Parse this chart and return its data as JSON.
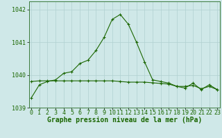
{
  "title": "Graphe pression niveau de la mer (hPa)",
  "background_color": "#cfe8e8",
  "grid_color": "#b0d0d0",
  "line_color": "#1a6600",
  "x": [
    0,
    1,
    2,
    3,
    4,
    5,
    6,
    7,
    8,
    9,
    10,
    11,
    12,
    13,
    14,
    15,
    16,
    17,
    18,
    19,
    20,
    21,
    22,
    23
  ],
  "y_main": [
    1039.3,
    1039.7,
    1039.8,
    1039.85,
    1040.05,
    1040.1,
    1040.35,
    1040.45,
    1040.75,
    1041.15,
    1041.7,
    1041.85,
    1041.55,
    1041.0,
    1040.4,
    1039.85,
    1039.8,
    1039.75,
    1039.65,
    1039.6,
    1039.75,
    1039.55,
    1039.7,
    1039.55
  ],
  "y_flat": [
    1039.8,
    1039.82,
    1039.82,
    1039.82,
    1039.82,
    1039.82,
    1039.82,
    1039.82,
    1039.82,
    1039.82,
    1039.82,
    1039.8,
    1039.78,
    1039.78,
    1039.78,
    1039.76,
    1039.74,
    1039.72,
    1039.65,
    1039.65,
    1039.68,
    1039.58,
    1039.65,
    1039.55
  ],
  "ylim": [
    1039.0,
    1042.25
  ],
  "yticks": [
    1039,
    1040,
    1041,
    1042
  ],
  "xtick_labels": [
    "0",
    "1",
    "2",
    "3",
    "4",
    "5",
    "6",
    "7",
    "8",
    "9",
    "10",
    "11",
    "12",
    "13",
    "14",
    "15",
    "16",
    "17",
    "18",
    "19",
    "20",
    "21",
    "22",
    "23"
  ],
  "title_fontsize": 7,
  "tick_fontsize": 6,
  "border_color": "#3a7a3a",
  "figsize": [
    3.2,
    2.0
  ],
  "dpi": 100
}
